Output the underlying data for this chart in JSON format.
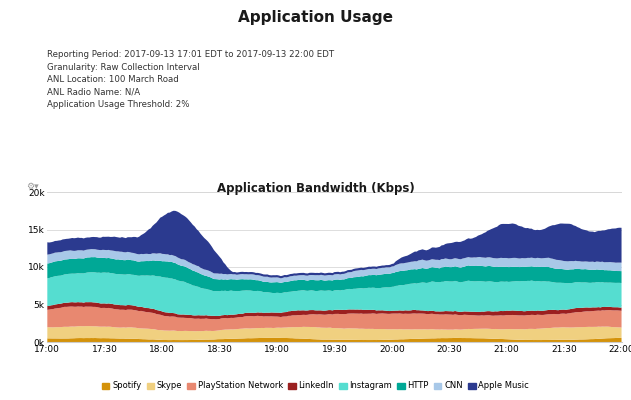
{
  "title": "Application Usage",
  "subtitle": "Application Bandwidth (Kbps)",
  "info_lines": [
    "Reporting Period: 2017-09-13 17:01 EDT to 2017-09-13 22:00 EDT",
    "Granularity: Raw Collection Interval",
    "ANL Location: 100 March Road",
    "ANL Radio Name: N/A",
    "Application Usage Threshold: 2%"
  ],
  "ylim": [
    0,
    20000
  ],
  "yticks": [
    0,
    5000,
    10000,
    15000,
    20000
  ],
  "x_tick_positions": [
    0,
    30,
    60,
    90,
    120,
    150,
    180,
    210,
    240,
    270,
    300
  ],
  "x_tick_labels": [
    "17:00",
    "17:30",
    "18:00",
    "18:30",
    "19:00",
    "19:30",
    "20:00",
    "20:30",
    "21:00",
    "21:30",
    "22:00"
  ],
  "layers": [
    {
      "name": "Spotify",
      "color": "#D4920A"
    },
    {
      "name": "Skype",
      "color": "#F0D080"
    },
    {
      "name": "PlayStation Network",
      "color": "#E88870"
    },
    {
      "name": "LinkedIn",
      "color": "#9B2020"
    },
    {
      "name": "Instagram",
      "color": "#55DDD0"
    },
    {
      "name": "HTTP",
      "color": "#00A896"
    },
    {
      "name": "CNN",
      "color": "#A8C8E8"
    },
    {
      "name": "Apple Music",
      "color": "#2B3A8F"
    }
  ],
  "background_color": "#ffffff",
  "plot_bg_color": "#ffffff",
  "grid_color": "#d8d8d8"
}
